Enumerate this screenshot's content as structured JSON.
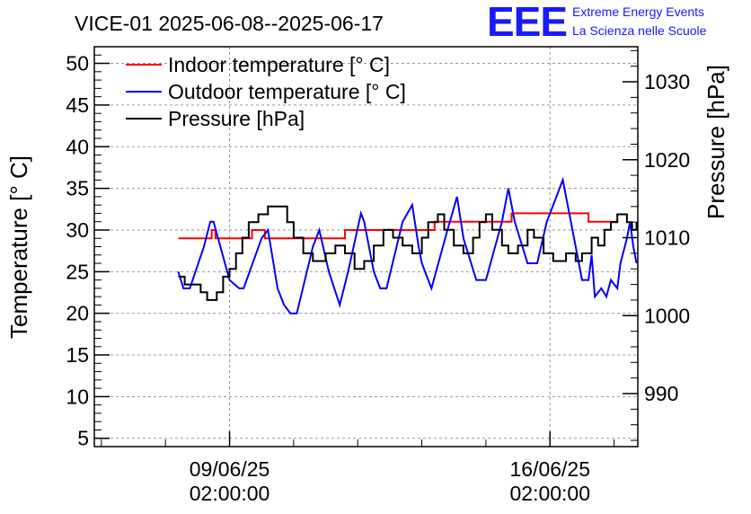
{
  "header": {
    "logo_text": "EEE",
    "org_line1": "Extreme Energy Events",
    "org_line2": "La Scienza nelle Scuole",
    "logo_color": "#1a1aff"
  },
  "chart_data": {
    "type": "line",
    "title": "VICE-01 2025-06-08--2025-06-17",
    "ylabel": "Temperature [° C]",
    "y2label": "Pressure [hPa]",
    "xlabel": "",
    "ylim": [
      4,
      52
    ],
    "y2lim": [
      983.2,
      1034.5
    ],
    "xlim": [
      -2.11,
      6.37
    ],
    "grid": true,
    "legend_position": "top-left",
    "y_ticks": [
      5,
      10,
      15,
      20,
      25,
      30,
      35,
      40,
      45,
      50
    ],
    "y2_ticks": [
      990,
      1000,
      1010,
      1020,
      1030
    ],
    "x_ticks": [
      {
        "value": 0,
        "label_line1": "09/06/25",
        "label_line2": "02:00:00"
      },
      {
        "value": 5,
        "label_line1": "16/06/25",
        "label_line2": "02:00:00"
      }
    ],
    "x_units": "days since 2025-06-09 02:00:00",
    "series": [
      {
        "name": "Indoor temperature [° C]",
        "color": "#ff0000",
        "axis": "left",
        "step": true,
        "points": [
          [
            -0.8,
            29
          ],
          [
            -0.28,
            29
          ],
          [
            -0.28,
            30
          ],
          [
            -0.22,
            30
          ],
          [
            -0.22,
            29
          ],
          [
            0.35,
            29
          ],
          [
            0.35,
            30
          ],
          [
            0.55,
            30
          ],
          [
            0.55,
            29
          ],
          [
            1.8,
            29
          ],
          [
            1.8,
            30
          ],
          [
            3.2,
            30
          ],
          [
            3.2,
            31
          ],
          [
            4.4,
            31
          ],
          [
            4.4,
            32
          ],
          [
            5.6,
            32
          ],
          [
            5.6,
            31
          ],
          [
            6.05,
            31
          ]
        ]
      },
      {
        "name": "Outdoor temperature [° C]",
        "color": "#0000ff",
        "axis": "left",
        "step": false,
        "points": [
          [
            -0.8,
            25
          ],
          [
            -0.72,
            23
          ],
          [
            -0.62,
            23
          ],
          [
            -0.4,
            28
          ],
          [
            -0.3,
            31
          ],
          [
            -0.25,
            31
          ],
          [
            0.0,
            24
          ],
          [
            0.15,
            23
          ],
          [
            0.22,
            23
          ],
          [
            0.5,
            29
          ],
          [
            0.6,
            30
          ],
          [
            0.75,
            23
          ],
          [
            0.85,
            21
          ],
          [
            0.95,
            20
          ],
          [
            1.05,
            20
          ],
          [
            1.3,
            28
          ],
          [
            1.4,
            30
          ],
          [
            1.55,
            25
          ],
          [
            1.72,
            21
          ],
          [
            1.85,
            25
          ],
          [
            2.05,
            32
          ],
          [
            2.1,
            31
          ],
          [
            2.25,
            25
          ],
          [
            2.35,
            23
          ],
          [
            2.45,
            23
          ],
          [
            2.7,
            31
          ],
          [
            2.85,
            33
          ],
          [
            2.95,
            28
          ],
          [
            3.0,
            26
          ],
          [
            3.15,
            23
          ],
          [
            3.4,
            30
          ],
          [
            3.55,
            34
          ],
          [
            3.65,
            29
          ],
          [
            3.85,
            24
          ],
          [
            4.0,
            24
          ],
          [
            4.25,
            31
          ],
          [
            4.35,
            35
          ],
          [
            4.45,
            31
          ],
          [
            4.65,
            26
          ],
          [
            4.8,
            26
          ],
          [
            4.95,
            31
          ],
          [
            5.1,
            34
          ],
          [
            5.2,
            36
          ],
          [
            5.3,
            32
          ],
          [
            5.45,
            26
          ],
          [
            5.5,
            24
          ],
          [
            5.6,
            24
          ],
          [
            5.65,
            27
          ],
          [
            5.7,
            22
          ],
          [
            5.8,
            23
          ],
          [
            5.88,
            22
          ],
          [
            5.95,
            24
          ],
          [
            6.05,
            23
          ],
          [
            6.1,
            26
          ],
          [
            6.2,
            29
          ],
          [
            6.25,
            31
          ],
          [
            6.3,
            28
          ],
          [
            6.35,
            26
          ]
        ]
      },
      {
        "name": "Pressure [hPa]",
        "color": "#000000",
        "axis": "right",
        "step": true,
        "points": [
          [
            -0.8,
            1005
          ],
          [
            -0.7,
            1005
          ],
          [
            -0.7,
            1004
          ],
          [
            -0.45,
            1004
          ],
          [
            -0.45,
            1003
          ],
          [
            -0.35,
            1003
          ],
          [
            -0.35,
            1002
          ],
          [
            -0.2,
            1002
          ],
          [
            -0.2,
            1003
          ],
          [
            -0.1,
            1003
          ],
          [
            -0.1,
            1005
          ],
          [
            0.0,
            1005
          ],
          [
            0.0,
            1006
          ],
          [
            0.1,
            1006
          ],
          [
            0.1,
            1008
          ],
          [
            0.2,
            1008
          ],
          [
            0.2,
            1010
          ],
          [
            0.3,
            1010
          ],
          [
            0.3,
            1012
          ],
          [
            0.45,
            1012
          ],
          [
            0.45,
            1013
          ],
          [
            0.6,
            1013
          ],
          [
            0.6,
            1014
          ],
          [
            0.9,
            1014
          ],
          [
            0.9,
            1012
          ],
          [
            1.0,
            1012
          ],
          [
            1.0,
            1010
          ],
          [
            1.15,
            1010
          ],
          [
            1.15,
            1008
          ],
          [
            1.3,
            1008
          ],
          [
            1.3,
            1007
          ],
          [
            1.5,
            1007
          ],
          [
            1.5,
            1008
          ],
          [
            1.65,
            1008
          ],
          [
            1.65,
            1009
          ],
          [
            1.8,
            1009
          ],
          [
            1.8,
            1008
          ],
          [
            1.95,
            1008
          ],
          [
            1.95,
            1006
          ],
          [
            2.1,
            1006
          ],
          [
            2.1,
            1007
          ],
          [
            2.25,
            1007
          ],
          [
            2.25,
            1009
          ],
          [
            2.4,
            1009
          ],
          [
            2.4,
            1011
          ],
          [
            2.55,
            1011
          ],
          [
            2.55,
            1010
          ],
          [
            2.7,
            1010
          ],
          [
            2.7,
            1009
          ],
          [
            2.85,
            1009
          ],
          [
            2.85,
            1008
          ],
          [
            3.0,
            1008
          ],
          [
            3.0,
            1010
          ],
          [
            3.1,
            1010
          ],
          [
            3.1,
            1012
          ],
          [
            3.25,
            1012
          ],
          [
            3.25,
            1013
          ],
          [
            3.35,
            1013
          ],
          [
            3.35,
            1011
          ],
          [
            3.5,
            1011
          ],
          [
            3.5,
            1009
          ],
          [
            3.65,
            1009
          ],
          [
            3.65,
            1008
          ],
          [
            3.8,
            1008
          ],
          [
            3.8,
            1010
          ],
          [
            3.9,
            1010
          ],
          [
            3.9,
            1012
          ],
          [
            4.0,
            1012
          ],
          [
            4.0,
            1013
          ],
          [
            4.1,
            1013
          ],
          [
            4.1,
            1011
          ],
          [
            4.25,
            1011
          ],
          [
            4.25,
            1009
          ],
          [
            4.35,
            1009
          ],
          [
            4.35,
            1008
          ],
          [
            4.5,
            1008
          ],
          [
            4.5,
            1009
          ],
          [
            4.65,
            1009
          ],
          [
            4.65,
            1011
          ],
          [
            4.75,
            1011
          ],
          [
            4.75,
            1010
          ],
          [
            4.9,
            1010
          ],
          [
            4.9,
            1008
          ],
          [
            5.05,
            1008
          ],
          [
            5.05,
            1007
          ],
          [
            5.25,
            1007
          ],
          [
            5.25,
            1008
          ],
          [
            5.4,
            1008
          ],
          [
            5.4,
            1007
          ],
          [
            5.5,
            1007
          ],
          [
            5.5,
            1008
          ],
          [
            5.65,
            1008
          ],
          [
            5.65,
            1010
          ],
          [
            5.75,
            1010
          ],
          [
            5.75,
            1009
          ],
          [
            5.85,
            1009
          ],
          [
            5.85,
            1011
          ],
          [
            5.95,
            1011
          ],
          [
            5.95,
            1012
          ],
          [
            6.05,
            1012
          ],
          [
            6.05,
            1013
          ],
          [
            6.2,
            1013
          ],
          [
            6.2,
            1012
          ],
          [
            6.28,
            1012
          ],
          [
            6.28,
            1011
          ],
          [
            6.35,
            1011
          ],
          [
            6.35,
            1012
          ]
        ]
      }
    ]
  }
}
